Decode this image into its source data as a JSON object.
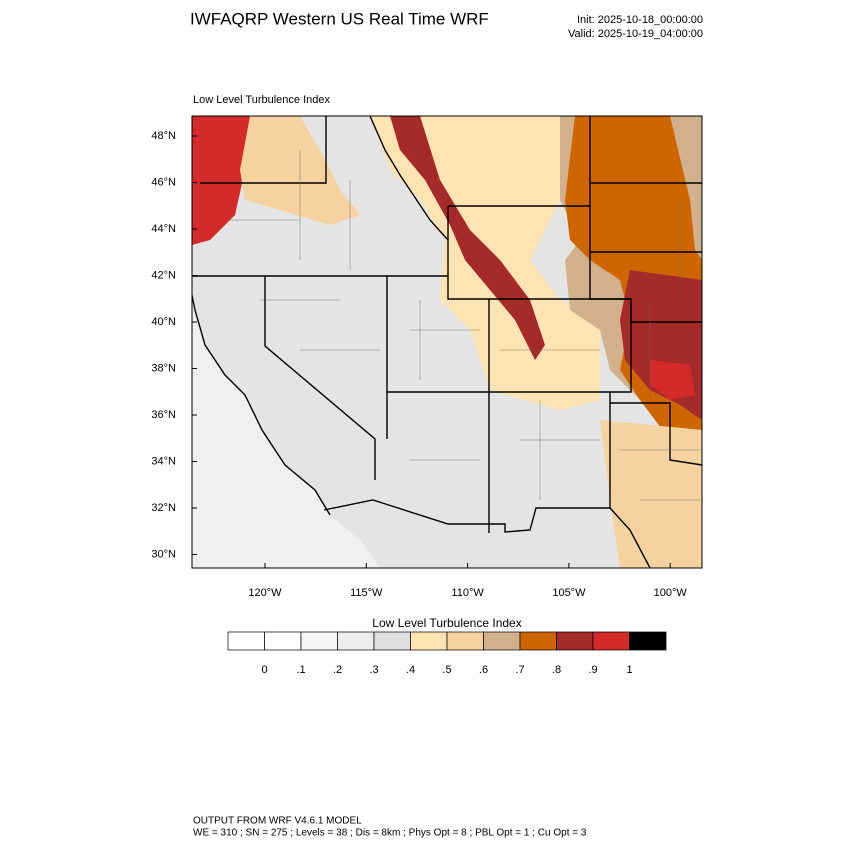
{
  "header": {
    "title": "IWFAQRP Western US Real Time WRF",
    "init": "Init: 2025-10-18_00:00:00",
    "valid": "Valid: 2025-10-19_04:00:00"
  },
  "map": {
    "subtitle": "Low Level Turbulence Index",
    "lat_labels": [
      "48°N",
      "46°N",
      "44°N",
      "42°N",
      "40°N",
      "38°N",
      "36°N",
      "34°N",
      "32°N",
      "30°N"
    ],
    "lon_labels": [
      "120°W",
      "115°W",
      "110°W",
      "105°W",
      "100°W"
    ]
  },
  "colorbar": {
    "title": "Low Level Turbulence Index",
    "labels": [
      "0",
      ".1",
      ".2",
      ".3",
      ".4",
      ".5",
      ".6",
      ".7",
      ".8",
      ".9",
      "1"
    ],
    "colors": [
      "#ffffff",
      "#f6f6f6",
      "#ededed",
      "#dedede",
      "#ffe3b3",
      "#f5d29f",
      "#d2b08c",
      "#cd6600",
      "#a52a2a",
      "#d42a2a",
      "#000000"
    ]
  },
  "footer": {
    "line1": "OUTPUT FROM WRF V4.6.1 MODEL",
    "line2": "WE = 310 ; SN = 275 ; Levels = 38 ; Dis = 8km ; Phys Opt = 8 ; PBL Opt = 1 ; Cu Opt = 3"
  }
}
